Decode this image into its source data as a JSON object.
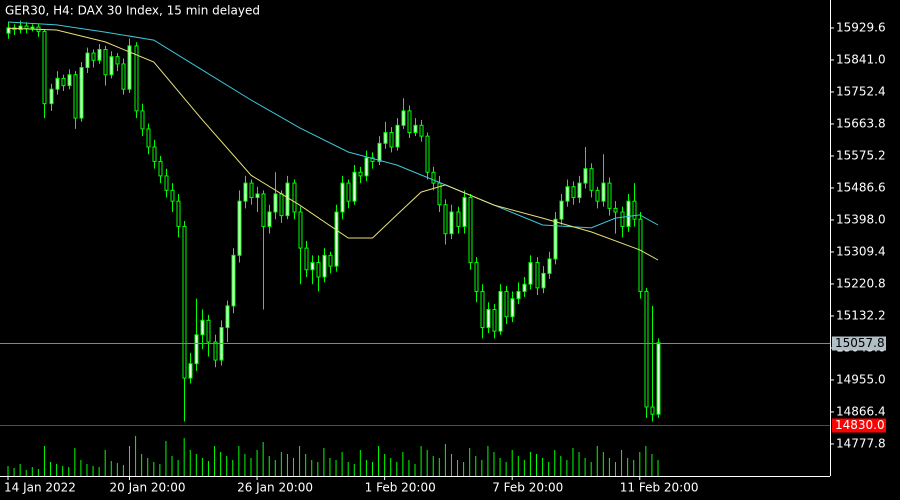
{
  "chart_data": {
    "type": "candlestick",
    "title": "GER30, H4:  DAX 30 Index, 15 min delayed",
    "categories": [
      "14 Jan 2022",
      null,
      null,
      null,
      null,
      null,
      null,
      null,
      null,
      null,
      null,
      null,
      null,
      null,
      null,
      null,
      null,
      null,
      null,
      null,
      "20 Jan 20:00",
      null,
      null,
      null,
      null,
      null,
      null,
      null,
      null,
      null,
      null,
      null,
      null,
      null,
      null,
      null,
      null,
      null,
      null,
      null,
      null,
      "26 Jan 20:00",
      null,
      null,
      null,
      null,
      null,
      null,
      null,
      null,
      null,
      null,
      null,
      null,
      null,
      null,
      null,
      null,
      null,
      null,
      null,
      null,
      "1 Feb 20:00",
      null,
      null,
      null,
      null,
      null,
      null,
      null,
      null,
      null,
      null,
      null,
      null,
      null,
      null,
      null,
      null,
      null,
      null,
      null,
      null,
      "7 Feb 20:00",
      null,
      null,
      null,
      null,
      null,
      null,
      null,
      null,
      null,
      null,
      null,
      null,
      null,
      null,
      null,
      null,
      null,
      null,
      null,
      null,
      "11 Feb 20:00",
      null,
      null,
      null
    ],
    "candles": [
      [
        15915,
        15945,
        15900,
        15930
      ],
      [
        15930,
        15940,
        15910,
        15925
      ],
      [
        15925,
        15950,
        15915,
        15935
      ],
      [
        15935,
        15945,
        15915,
        15928
      ],
      [
        15928,
        15940,
        15920,
        15932
      ],
      [
        15932,
        15940,
        15905,
        15920
      ],
      [
        15920,
        15925,
        15680,
        15720
      ],
      [
        15720,
        15775,
        15700,
        15760
      ],
      [
        15760,
        15810,
        15745,
        15790
      ],
      [
        15790,
        15800,
        15755,
        15770
      ],
      [
        15770,
        15815,
        15760,
        15800
      ],
      [
        15800,
        15810,
        15650,
        15680
      ],
      [
        15680,
        15835,
        15670,
        15820
      ],
      [
        15820,
        15875,
        15805,
        15860
      ],
      [
        15860,
        15870,
        15820,
        15840
      ],
      [
        15840,
        15885,
        15830,
        15870
      ],
      [
        15870,
        15880,
        15770,
        15800
      ],
      [
        15800,
        15865,
        15790,
        15850
      ],
      [
        15850,
        15860,
        15810,
        15830
      ],
      [
        15830,
        15845,
        15745,
        15760
      ],
      [
        15760,
        15900,
        15750,
        15880
      ],
      [
        15880,
        15890,
        15680,
        15700
      ],
      [
        15700,
        15720,
        15630,
        15650
      ],
      [
        15650,
        15665,
        15580,
        15600
      ],
      [
        15600,
        15620,
        15540,
        15560
      ],
      [
        15560,
        15575,
        15500,
        15520
      ],
      [
        15520,
        15540,
        15460,
        15480
      ],
      [
        15480,
        15500,
        15420,
        15450
      ],
      [
        15450,
        15470,
        15350,
        15380
      ],
      [
        15380,
        15395,
        14840,
        14960
      ],
      [
        14960,
        15030,
        14945,
        15000
      ],
      [
        15000,
        15180,
        14980,
        15080
      ],
      [
        15080,
        15150,
        15040,
        15120
      ],
      [
        15120,
        15135,
        15020,
        15060
      ],
      [
        15060,
        15080,
        14990,
        15010
      ],
      [
        15010,
        15120,
        14995,
        15100
      ],
      [
        15100,
        15175,
        15060,
        15160
      ],
      [
        15160,
        15320,
        15140,
        15300
      ],
      [
        15300,
        15480,
        15280,
        15450
      ],
      [
        15450,
        15520,
        15430,
        15500
      ],
      [
        15500,
        15510,
        15440,
        15460
      ],
      [
        15460,
        15490,
        15420,
        15470
      ],
      [
        15470,
        15480,
        15150,
        15380
      ],
      [
        15380,
        15440,
        15360,
        15420
      ],
      [
        15420,
        15530,
        15400,
        15470
      ],
      [
        15470,
        15480,
        15390,
        15410
      ],
      [
        15410,
        15520,
        15400,
        15500
      ],
      [
        15500,
        15510,
        15400,
        15420
      ],
      [
        15420,
        15435,
        15220,
        15320
      ],
      [
        15320,
        15340,
        15240,
        15260
      ],
      [
        15260,
        15300,
        15220,
        15280
      ],
      [
        15280,
        15300,
        15200,
        15240
      ],
      [
        15240,
        15320,
        15225,
        15300
      ],
      [
        15300,
        15310,
        15250,
        15270
      ],
      [
        15270,
        15440,
        15255,
        15420
      ],
      [
        15420,
        15520,
        15400,
        15500
      ],
      [
        15500,
        15510,
        15430,
        15450
      ],
      [
        15450,
        15550,
        15440,
        15530
      ],
      [
        15530,
        15545,
        15500,
        15520
      ],
      [
        15520,
        15590,
        15505,
        15570
      ],
      [
        15570,
        15585,
        15540,
        15560
      ],
      [
        15560,
        15630,
        15550,
        15610
      ],
      [
        15610,
        15670,
        15595,
        15640
      ],
      [
        15640,
        15655,
        15585,
        15600
      ],
      [
        15600,
        15680,
        15590,
        15660
      ],
      [
        15660,
        15735,
        15650,
        15700
      ],
      [
        15700,
        15715,
        15625,
        15640
      ],
      [
        15640,
        15680,
        15630,
        15660
      ],
      [
        15660,
        15675,
        15615,
        15630
      ],
      [
        15630,
        15640,
        15510,
        15530
      ],
      [
        15530,
        15545,
        15480,
        15500
      ],
      [
        15500,
        15520,
        15420,
        15440
      ],
      [
        15440,
        15455,
        15330,
        15360
      ],
      [
        15360,
        15440,
        15345,
        15420
      ],
      [
        15420,
        15435,
        15360,
        15380
      ],
      [
        15380,
        15480,
        15360,
        15460
      ],
      [
        15460,
        15470,
        15260,
        15280
      ],
      [
        15280,
        15295,
        15170,
        15200
      ],
      [
        15200,
        15220,
        15070,
        15100
      ],
      [
        15100,
        15170,
        15085,
        15150
      ],
      [
        15150,
        15165,
        15070,
        15090
      ],
      [
        15090,
        15220,
        15080,
        15200
      ],
      [
        15200,
        15215,
        15110,
        15130
      ],
      [
        15130,
        15200,
        15115,
        15180
      ],
      [
        15180,
        15225,
        15165,
        15200
      ],
      [
        15200,
        15240,
        15185,
        15220
      ],
      [
        15220,
        15300,
        15205,
        15280
      ],
      [
        15280,
        15295,
        15190,
        15210
      ],
      [
        15210,
        15270,
        15195,
        15250
      ],
      [
        15250,
        15310,
        15235,
        15290
      ],
      [
        15290,
        15420,
        15275,
        15400
      ],
      [
        15400,
        15470,
        15385,
        15450
      ],
      [
        15450,
        15510,
        15435,
        15490
      ],
      [
        15490,
        15505,
        15440,
        15460
      ],
      [
        15460,
        15520,
        15445,
        15500
      ],
      [
        15500,
        15600,
        15485,
        15540
      ],
      [
        15540,
        15555,
        15460,
        15480
      ],
      [
        15480,
        15490,
        15430,
        15450
      ],
      [
        15450,
        15580,
        15435,
        15500
      ],
      [
        15500,
        15515,
        15410,
        15430
      ],
      [
        15430,
        15450,
        15360,
        15420
      ],
      [
        15420,
        15435,
        15350,
        15380
      ],
      [
        15380,
        15470,
        15365,
        15450
      ],
      [
        15450,
        15500,
        15380,
        15400
      ],
      [
        15400,
        15420,
        15180,
        15200
      ],
      [
        15200,
        15210,
        14850,
        14880
      ],
      [
        14880,
        15160,
        14840,
        14860
      ],
      [
        14860,
        15070,
        14850,
        15058
      ]
    ],
    "up_color": "#e8ffe8",
    "down_color": "#000000",
    "wick_color": "#00ff00",
    "volume": [
      10,
      8,
      12,
      6,
      9,
      7,
      30,
      14,
      12,
      10,
      9,
      28,
      16,
      12,
      10,
      9,
      26,
      15,
      13,
      11,
      30,
      40,
      22,
      18,
      14,
      12,
      35,
      20,
      16,
      38,
      26,
      22,
      18,
      15,
      30,
      24,
      20,
      16,
      30,
      22,
      18,
      26,
      34,
      20,
      16,
      24,
      22,
      18,
      30,
      22,
      16,
      14,
      28,
      18,
      16,
      24,
      14,
      12,
      26,
      16,
      14,
      30,
      22,
      18,
      14,
      24,
      16,
      12,
      30,
      26,
      20,
      18,
      32,
      22,
      16,
      14,
      28,
      20,
      16,
      30,
      24,
      18,
      14,
      26,
      20,
      16,
      24,
      22,
      18,
      14,
      26,
      20,
      16,
      28,
      24,
      18,
      14,
      30,
      24,
      18,
      14,
      26,
      18,
      16,
      24,
      30,
      22,
      16
    ],
    "volume_color": "#00ff00",
    "lines": [
      {
        "color": "#3fc7d9",
        "x": [
          0,
          8,
          16,
          24,
          32,
          40,
          48,
          56,
          64,
          72,
          80,
          88,
          96,
          100,
          104,
          107
        ],
        "values": [
          15946,
          15938,
          15918,
          15896,
          15813,
          15730,
          15653,
          15586,
          15550,
          15495,
          15439,
          15384,
          15376,
          15403,
          15412,
          15384
        ]
      },
      {
        "color": "#e8e07a",
        "x": [
          0,
          8,
          16,
          24,
          32,
          40,
          48,
          56,
          60,
          64,
          68,
          72,
          80,
          88,
          96,
          104,
          107
        ],
        "values": [
          15929,
          15924,
          15891,
          15835,
          15675,
          15522,
          15439,
          15348,
          15348,
          15412,
          15475,
          15495,
          15439,
          15403,
          15365,
          15315,
          15287
        ]
      }
    ],
    "price_lines": [
      {
        "value": 15057.8,
        "label": "15057.8",
        "color": "#778899",
        "label_fill": "#b0bec5",
        "label_text": "#000000"
      },
      {
        "value": 14830.0,
        "label": "14830.0",
        "color": "#ff0000",
        "label_fill": "#ff0000",
        "label_text": "#ffffff"
      }
    ],
    "ylim": [
      14689,
      16007
    ],
    "yticks": [
      15929.6,
      {
        "value": 15841.0,
        "label": "15841.0"
      },
      15752.4,
      15663.8,
      15575.2,
      15486.6,
      {
        "value": 15398.0,
        "label": "15398.0"
      },
      15309.4,
      15220.8,
      15132.2,
      15043.6,
      {
        "value": 14955.0,
        "label": "14955.0"
      },
      14866.4,
      14777.8
    ]
  }
}
